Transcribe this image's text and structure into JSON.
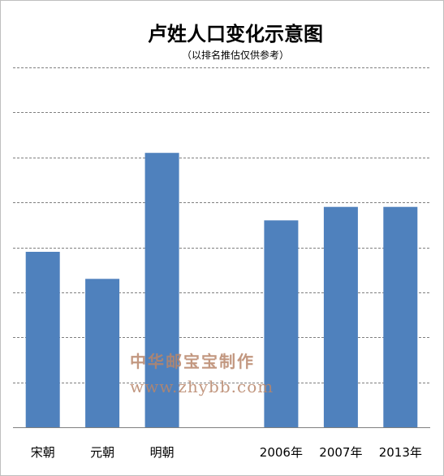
{
  "chart_data": {
    "type": "bar",
    "title": "卢姓人口变化示意图",
    "subtitle": "（以排名推估仅供参考）",
    "categories": [
      "宋朝",
      "元朝",
      "明朝",
      "",
      "2006年",
      "2007年",
      "2013年"
    ],
    "values": [
      3.9,
      3.3,
      6.1,
      null,
      4.6,
      4.9,
      4.9
    ],
    "ylim": [
      0,
      8
    ],
    "grid": true,
    "gridline_style": "dashed",
    "bar_color": "#4f81bd",
    "xlabel": "",
    "ylabel": ""
  },
  "watermark": {
    "line1": "中华邮宝宝制作",
    "line2": "www.zhybb.com"
  }
}
